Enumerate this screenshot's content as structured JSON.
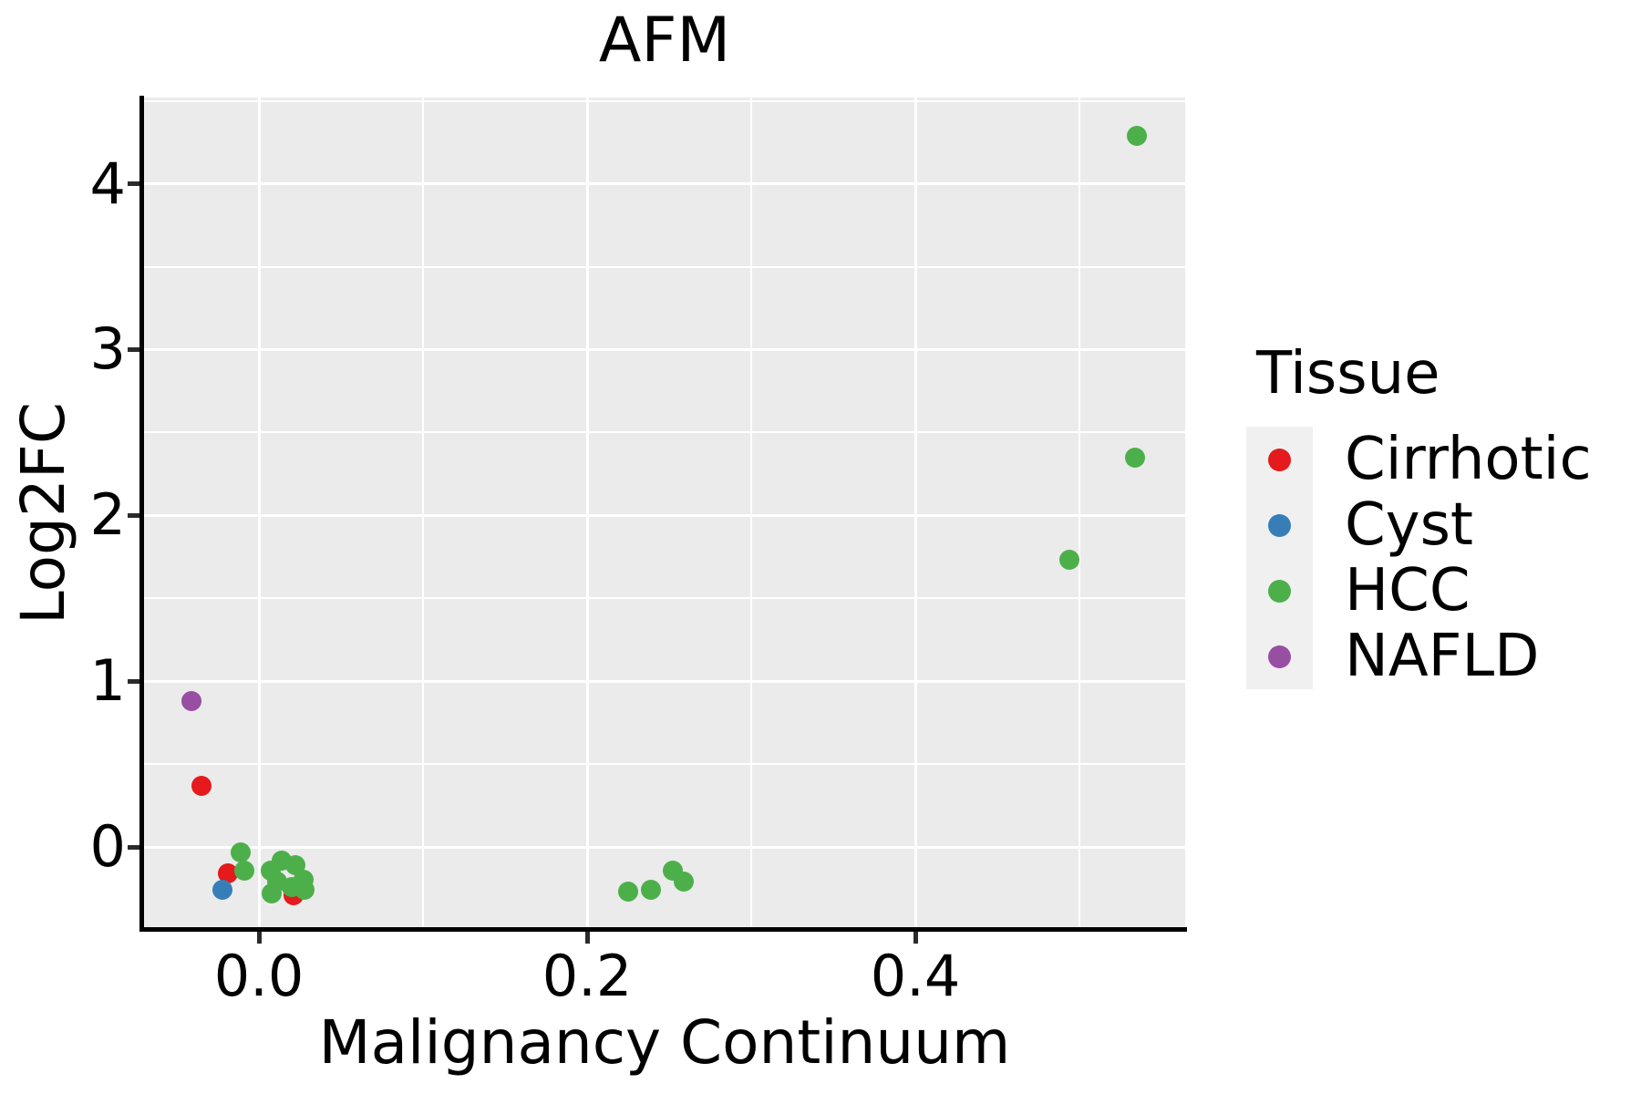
{
  "chart_data": {
    "type": "scatter",
    "title": "AFM",
    "xlabel": "Malignancy Continuum",
    "ylabel": "Log2FC",
    "x_axis": {
      "range": [
        -0.07,
        0.5644
      ],
      "ticks": [
        0.0,
        0.2,
        0.4
      ],
      "tick_labels": [
        "0.0",
        "0.2",
        "0.4"
      ],
      "minor_ticks": [
        0.1,
        0.3,
        0.5
      ],
      "grid": true
    },
    "y_axis": {
      "range": [
        -0.5,
        4.52
      ],
      "ticks": [
        0,
        1,
        2,
        3,
        4
      ],
      "tick_labels": [
        "0",
        "1",
        "2",
        "3",
        "4"
      ],
      "minor_ticks": [
        0.5,
        1.5,
        2.5,
        3.5,
        4.5
      ],
      "grid": true
    },
    "legend": {
      "title": "Tissue",
      "position": "right",
      "entries": [
        {
          "label": "Cirrhotic",
          "color": "#E41A1C"
        },
        {
          "label": "Cyst",
          "color": "#377EB8"
        },
        {
          "label": "HCC",
          "color": "#4DAF4A"
        },
        {
          "label": "NAFLD",
          "color": "#984EA3"
        }
      ]
    },
    "series": [
      {
        "name": "Cirrhotic",
        "color": "#E41A1C",
        "points": [
          [
            -0.035,
            0.37
          ],
          [
            -0.019,
            -0.16
          ],
          [
            0.021,
            -0.29
          ]
        ]
      },
      {
        "name": "Cyst",
        "color": "#377EB8",
        "points": [
          [
            -0.022,
            -0.26
          ]
        ]
      },
      {
        "name": "HCC",
        "color": "#4DAF4A",
        "points": [
          [
            -0.011,
            -0.03
          ],
          [
            -0.009,
            -0.14
          ],
          [
            0.007,
            -0.14
          ],
          [
            0.014,
            -0.08
          ],
          [
            0.022,
            -0.11
          ],
          [
            0.011,
            -0.21
          ],
          [
            0.02,
            -0.24
          ],
          [
            0.027,
            -0.2
          ],
          [
            0.008,
            -0.28
          ],
          [
            0.028,
            -0.26
          ],
          [
            0.225,
            -0.27
          ],
          [
            0.239,
            -0.26
          ],
          [
            0.252,
            -0.14
          ],
          [
            0.259,
            -0.21
          ],
          [
            0.494,
            1.73
          ],
          [
            0.534,
            2.35
          ],
          [
            0.535,
            4.29
          ]
        ]
      },
      {
        "name": "NAFLD",
        "color": "#984EA3",
        "points": [
          [
            -0.041,
            0.88
          ]
        ]
      }
    ],
    "styles": {
      "panel_bg": "#EBEBEB",
      "grid_color": "#FFFFFF",
      "legend_key_bg": "#F0F0F0",
      "axis_color": "#000000",
      "point_diameter": 22
    }
  }
}
